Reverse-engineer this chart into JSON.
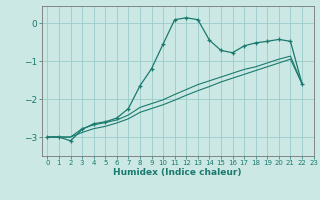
{
  "xlabel": "Humidex (Indice chaleur)",
  "ylabel": "",
  "background_color": "#cce8e4",
  "grid_color": "#99cccc",
  "line_color": "#1a7a6e",
  "xlim": [
    -0.5,
    23
  ],
  "ylim": [
    -3.5,
    0.45
  ],
  "yticks": [
    0,
    -1,
    -2,
    -3
  ],
  "xticks": [
    0,
    1,
    2,
    3,
    4,
    5,
    6,
    7,
    8,
    9,
    10,
    11,
    12,
    13,
    14,
    15,
    16,
    17,
    18,
    19,
    20,
    21,
    22,
    23
  ],
  "series1_x": [
    0,
    1,
    2,
    3,
    4,
    5,
    6,
    7,
    8,
    9,
    10,
    11,
    12,
    13,
    14,
    15,
    16,
    17,
    18,
    19,
    20,
    21,
    22
  ],
  "series1_y": [
    -3.0,
    -3.0,
    -3.1,
    -2.8,
    -2.65,
    -2.6,
    -2.5,
    -2.25,
    -1.65,
    -1.2,
    -0.55,
    0.09,
    0.14,
    0.09,
    -0.45,
    -0.72,
    -0.78,
    -0.6,
    -0.52,
    -0.48,
    -0.43,
    -0.48,
    -1.6
  ],
  "series2_x": [
    0,
    1,
    2,
    3,
    4,
    5,
    6,
    7,
    8,
    9,
    10,
    11,
    12,
    13,
    14,
    15,
    16,
    17,
    18,
    19,
    20,
    21,
    22
  ],
  "series2_y": [
    -3.0,
    -3.0,
    -3.0,
    -2.78,
    -2.68,
    -2.62,
    -2.55,
    -2.42,
    -2.22,
    -2.12,
    -2.02,
    -1.88,
    -1.75,
    -1.62,
    -1.52,
    -1.42,
    -1.32,
    -1.22,
    -1.15,
    -1.05,
    -0.95,
    -0.87,
    -1.6
  ],
  "series3_x": [
    0,
    1,
    2,
    3,
    4,
    5,
    6,
    7,
    8,
    9,
    10,
    11,
    12,
    13,
    14,
    15,
    16,
    17,
    18,
    19,
    20,
    21,
    22
  ],
  "series3_y": [
    -3.0,
    -3.0,
    -3.0,
    -2.88,
    -2.78,
    -2.72,
    -2.63,
    -2.52,
    -2.35,
    -2.25,
    -2.15,
    -2.03,
    -1.9,
    -1.78,
    -1.67,
    -1.55,
    -1.45,
    -1.35,
    -1.25,
    -1.15,
    -1.05,
    -0.95,
    -1.6
  ]
}
